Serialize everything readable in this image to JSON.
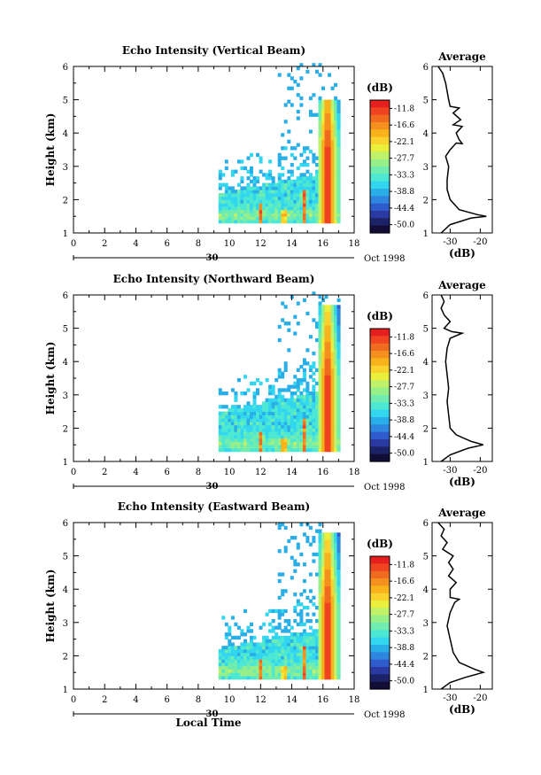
{
  "panels": [
    {
      "title": "Echo Intensity (Vertical Beam)",
      "profile": [
        [
          1.0,
          -33
        ],
        [
          1.25,
          -30
        ],
        [
          1.45,
          -23
        ],
        [
          1.5,
          -18
        ],
        [
          1.55,
          -21
        ],
        [
          1.7,
          -27
        ],
        [
          2.0,
          -30
        ],
        [
          2.3,
          -31
        ],
        [
          2.6,
          -31
        ],
        [
          3.0,
          -30.5
        ],
        [
          3.3,
          -31.5
        ],
        [
          3.5,
          -30
        ],
        [
          3.7,
          -28
        ],
        [
          3.68,
          -26
        ],
        [
          3.8,
          -27
        ],
        [
          4.0,
          -28
        ],
        [
          4.2,
          -26
        ],
        [
          4.25,
          -29
        ],
        [
          4.4,
          -26.5
        ],
        [
          4.6,
          -29
        ],
        [
          4.75,
          -27
        ],
        [
          4.8,
          -30
        ],
        [
          5.0,
          -30.5
        ],
        [
          5.5,
          -31.5
        ],
        [
          5.8,
          -32.5
        ],
        [
          6.0,
          -34
        ]
      ]
    },
    {
      "title": "Echo Intensity (Northward Beam)",
      "profile": [
        [
          1.0,
          -33
        ],
        [
          1.2,
          -30
        ],
        [
          1.4,
          -24
        ],
        [
          1.5,
          -19
        ],
        [
          1.6,
          -23
        ],
        [
          1.8,
          -28
        ],
        [
          2.0,
          -30
        ],
        [
          2.4,
          -30.5
        ],
        [
          2.8,
          -31
        ],
        [
          3.2,
          -30.5
        ],
        [
          3.6,
          -31
        ],
        [
          4.0,
          -31.5
        ],
        [
          4.4,
          -31
        ],
        [
          4.7,
          -30
        ],
        [
          4.85,
          -26
        ],
        [
          4.9,
          -29.5
        ],
        [
          5.0,
          -32
        ],
        [
          5.2,
          -30
        ],
        [
          5.4,
          -32
        ],
        [
          5.6,
          -33
        ],
        [
          5.8,
          -32
        ],
        [
          6.0,
          -33
        ]
      ]
    },
    {
      "title": "Echo Intensity (Eastward Beam)",
      "profile": [
        [
          1.0,
          -33
        ],
        [
          1.2,
          -30
        ],
        [
          1.35,
          -25
        ],
        [
          1.5,
          -19
        ],
        [
          1.6,
          -22
        ],
        [
          1.8,
          -27
        ],
        [
          2.1,
          -29
        ],
        [
          2.5,
          -30
        ],
        [
          2.9,
          -31
        ],
        [
          3.3,
          -30
        ],
        [
          3.6,
          -28.5
        ],
        [
          3.7,
          -27
        ],
        [
          3.75,
          -30
        ],
        [
          4.0,
          -30
        ],
        [
          4.2,
          -28
        ],
        [
          4.4,
          -30.5
        ],
        [
          4.6,
          -29
        ],
        [
          4.8,
          -30.5
        ],
        [
          5.0,
          -29
        ],
        [
          5.2,
          -32.5
        ],
        [
          5.4,
          -31
        ],
        [
          5.6,
          -33
        ],
        [
          5.8,
          -32
        ],
        [
          6.0,
          -34
        ]
      ]
    }
  ],
  "chart_data": {
    "type": "heatmap",
    "x": {
      "ticks": [
        0,
        2,
        4,
        6,
        8,
        10,
        12,
        14,
        16,
        18
      ],
      "range": [
        0,
        18
      ]
    },
    "y": {
      "label": "Height (km)",
      "ticks": [
        1,
        2,
        3,
        4,
        5,
        6
      ],
      "range": [
        1,
        6
      ]
    },
    "date_line": {
      "day": "30",
      "month_year": "Oct 1998"
    },
    "xlabel": "Local Time",
    "colorbar": {
      "unit": "(dB)",
      "labels": [
        "-11.8",
        "-16.6",
        "-22.1",
        "-27.7",
        "-33.3",
        "-38.8",
        "-44.4",
        "-50.0"
      ],
      "colors": [
        "#e51e1e",
        "#ef4321",
        "#f06a1f",
        "#f4901e",
        "#f8b21c",
        "#f9d22e",
        "#eaef3c",
        "#bff169",
        "#97ef8a",
        "#70ecb0",
        "#4de8d3",
        "#33d6ef",
        "#2aaee7",
        "#2e86de",
        "#2f5ccd",
        "#2a3aa2",
        "#1b2266",
        "#120d37"
      ]
    },
    "profile": {
      "title": "Average",
      "xlabel": "(dB)",
      "xticks": [
        -30,
        -20
      ],
      "xrange": [
        -36,
        -16
      ]
    }
  }
}
